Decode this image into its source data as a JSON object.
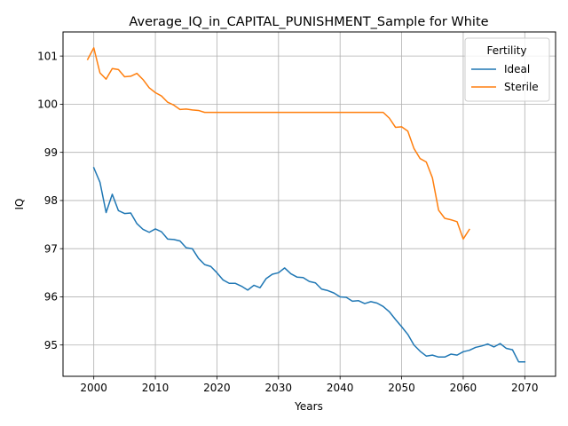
{
  "chart_data": {
    "type": "line",
    "title": "Average_IQ_in_CAPITAL_PUNISHMENT_Sample for White",
    "xlabel": "Years",
    "ylabel": "IQ",
    "xlim": [
      1995,
      2075
    ],
    "ylim": [
      94.35,
      101.5
    ],
    "xticks": [
      2000,
      2010,
      2020,
      2030,
      2040,
      2050,
      2060,
      2070
    ],
    "yticks": [
      95,
      96,
      97,
      98,
      99,
      100,
      101
    ],
    "grid": true,
    "legend": {
      "title": "Fertility",
      "placement": "top-right"
    },
    "series": [
      {
        "name": "Ideal",
        "color": "#1f77b4",
        "x": [
          2000,
          2001,
          2002,
          2003,
          2004,
          2005,
          2006,
          2007,
          2008,
          2009,
          2010,
          2011,
          2012,
          2013,
          2014,
          2015,
          2016,
          2017,
          2018,
          2019,
          2020,
          2021,
          2022,
          2023,
          2024,
          2025,
          2026,
          2027,
          2028,
          2029,
          2030,
          2031,
          2032,
          2033,
          2034,
          2035,
          2036,
          2037,
          2038,
          2039,
          2040,
          2041,
          2042,
          2043,
          2044,
          2045,
          2046,
          2047,
          2048,
          2049,
          2050,
          2051,
          2052,
          2053,
          2054,
          2055,
          2056,
          2057,
          2058,
          2059,
          2060,
          2061,
          2062,
          2063,
          2064,
          2065,
          2066,
          2067,
          2068,
          2069,
          2070
        ],
        "values": [
          98.68,
          98.38,
          97.75,
          98.13,
          97.79,
          97.73,
          97.74,
          97.52,
          97.4,
          97.34,
          97.41,
          97.35,
          97.2,
          97.19,
          97.16,
          97.02,
          97.0,
          96.8,
          96.67,
          96.63,
          96.5,
          96.35,
          96.28,
          96.28,
          96.22,
          96.14,
          96.24,
          96.19,
          96.38,
          96.47,
          96.5,
          96.6,
          96.48,
          96.41,
          96.4,
          96.32,
          96.29,
          96.16,
          96.13,
          96.08,
          96.0,
          95.99,
          95.91,
          95.92,
          95.86,
          95.9,
          95.87,
          95.8,
          95.69,
          95.53,
          95.38,
          95.22,
          95.0,
          94.87,
          94.77,
          94.79,
          94.75,
          94.75,
          94.81,
          94.79,
          94.86,
          94.89,
          94.95,
          94.98,
          95.02,
          94.96,
          95.03,
          94.93,
          94.9,
          94.65,
          94.65
        ]
      },
      {
        "name": "Sterile",
        "color": "#ff7f0e",
        "x": [
          1999,
          2000,
          2001,
          2002,
          2003,
          2004,
          2005,
          2006,
          2007,
          2008,
          2009,
          2010,
          2011,
          2012,
          2013,
          2014,
          2015,
          2016,
          2017,
          2018,
          2019,
          2020,
          2021,
          2022,
          2023,
          2024,
          2025,
          2026,
          2027,
          2028,
          2029,
          2030,
          2031,
          2032,
          2033,
          2034,
          2035,
          2036,
          2037,
          2038,
          2039,
          2040,
          2041,
          2042,
          2043,
          2044,
          2045,
          2046,
          2047,
          2048,
          2049,
          2050,
          2051,
          2052,
          2053,
          2054,
          2055,
          2056,
          2057,
          2058,
          2059,
          2060,
          2061
        ],
        "values": [
          100.93,
          101.17,
          100.65,
          100.52,
          100.74,
          100.72,
          100.57,
          100.58,
          100.64,
          100.51,
          100.34,
          100.24,
          100.17,
          100.04,
          99.98,
          99.89,
          99.9,
          99.88,
          99.87,
          99.83,
          99.83,
          99.83,
          99.83,
          99.83,
          99.83,
          99.83,
          99.83,
          99.83,
          99.83,
          99.83,
          99.83,
          99.83,
          99.83,
          99.83,
          99.83,
          99.83,
          99.83,
          99.83,
          99.83,
          99.83,
          99.83,
          99.83,
          99.83,
          99.83,
          99.83,
          99.83,
          99.83,
          99.83,
          99.83,
          99.71,
          99.52,
          99.53,
          99.44,
          99.08,
          98.87,
          98.8,
          98.47,
          97.8,
          97.63,
          97.6,
          97.56,
          97.2,
          97.4
        ]
      }
    ]
  }
}
